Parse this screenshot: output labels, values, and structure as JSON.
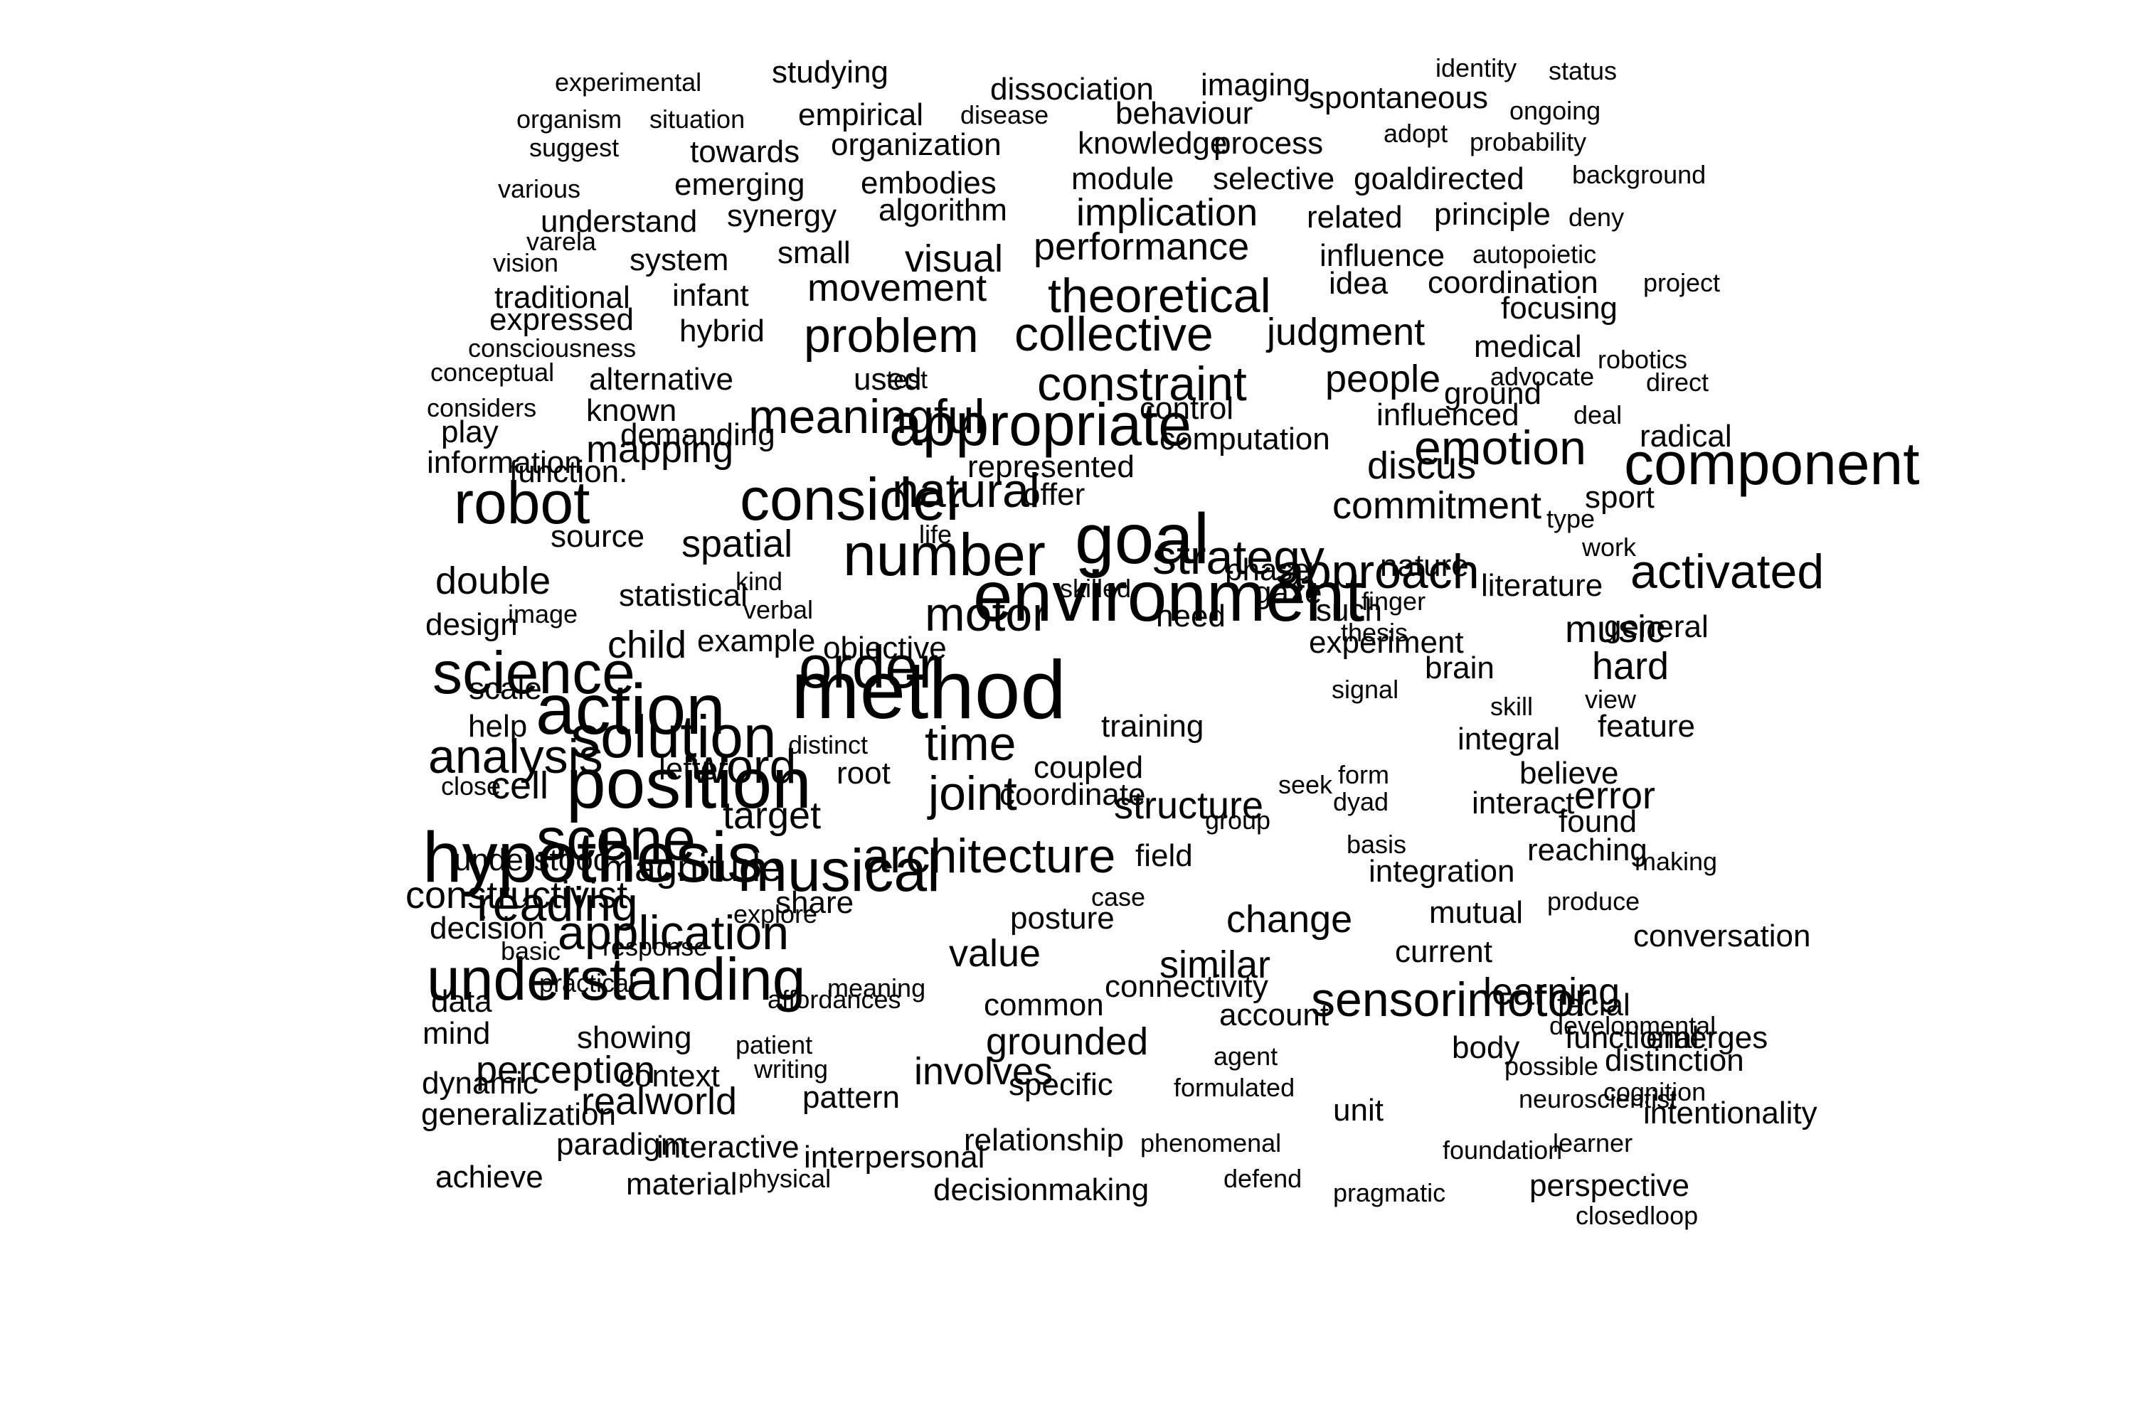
{
  "word_cloud": {
    "text_color": "#000000",
    "background_color": "#ffffff",
    "words": [
      {
        "text": "experimental",
        "weight": 1
      },
      {
        "text": "studying",
        "weight": 2
      },
      {
        "text": "dissociation",
        "weight": 2
      },
      {
        "text": "imaging",
        "weight": 2
      },
      {
        "text": "identity",
        "weight": 1
      },
      {
        "text": "status",
        "weight": 1
      },
      {
        "text": "organism",
        "weight": 1
      },
      {
        "text": "situation",
        "weight": 1
      },
      {
        "text": "empirical",
        "weight": 2
      },
      {
        "text": "disease",
        "weight": 1
      },
      {
        "text": "behaviour",
        "weight": 2
      },
      {
        "text": "spontaneous",
        "weight": 2
      },
      {
        "text": "ongoing",
        "weight": 1
      },
      {
        "text": "suggest",
        "weight": 1
      },
      {
        "text": "towards",
        "weight": 2
      },
      {
        "text": "organization",
        "weight": 2
      },
      {
        "text": "knowledge",
        "weight": 2
      },
      {
        "text": "process",
        "weight": 2
      },
      {
        "text": "adopt",
        "weight": 1
      },
      {
        "text": "probability",
        "weight": 1
      },
      {
        "text": "background",
        "weight": 1
      },
      {
        "text": "various",
        "weight": 1
      },
      {
        "text": "emerging",
        "weight": 2
      },
      {
        "text": "embodies",
        "weight": 2
      },
      {
        "text": "module",
        "weight": 2
      },
      {
        "text": "selective",
        "weight": 2
      },
      {
        "text": "goaldirected",
        "weight": 2
      },
      {
        "text": "understand",
        "weight": 2
      },
      {
        "text": "synergy",
        "weight": 2
      },
      {
        "text": "algorithm",
        "weight": 2
      },
      {
        "text": "implication",
        "weight": 3
      },
      {
        "text": "related",
        "weight": 2
      },
      {
        "text": "principle",
        "weight": 2
      },
      {
        "text": "deny",
        "weight": 1
      },
      {
        "text": "varela",
        "weight": 1
      },
      {
        "text": "vision",
        "weight": 1
      },
      {
        "text": "system",
        "weight": 2
      },
      {
        "text": "small",
        "weight": 2
      },
      {
        "text": "visual",
        "weight": 3
      },
      {
        "text": "performance",
        "weight": 3
      },
      {
        "text": "influence",
        "weight": 2
      },
      {
        "text": "autopoietic",
        "weight": 1
      },
      {
        "text": "traditional",
        "weight": 2
      },
      {
        "text": "infant",
        "weight": 2
      },
      {
        "text": "movement",
        "weight": 3
      },
      {
        "text": "theoretical",
        "weight": 4
      },
      {
        "text": "idea",
        "weight": 2
      },
      {
        "text": "coordination",
        "weight": 2
      },
      {
        "text": "project",
        "weight": 1
      },
      {
        "text": "expressed",
        "weight": 2
      },
      {
        "text": "focusing",
        "weight": 2
      },
      {
        "text": "consciousness",
        "weight": 1
      },
      {
        "text": "hybrid",
        "weight": 2
      },
      {
        "text": "problem",
        "weight": 4
      },
      {
        "text": "collective",
        "weight": 4
      },
      {
        "text": "judgment",
        "weight": 3
      },
      {
        "text": "medical",
        "weight": 2
      },
      {
        "text": "conceptual",
        "weight": 1
      },
      {
        "text": "alternative",
        "weight": 2
      },
      {
        "text": "used",
        "weight": 2
      },
      {
        "text": "test",
        "weight": 1
      },
      {
        "text": "constraint",
        "weight": 4
      },
      {
        "text": "people",
        "weight": 3
      },
      {
        "text": "advocate",
        "weight": 1
      },
      {
        "text": "robotics",
        "weight": 1
      },
      {
        "text": "ground",
        "weight": 2
      },
      {
        "text": "direct",
        "weight": 1
      },
      {
        "text": "considers",
        "weight": 1
      },
      {
        "text": "known",
        "weight": 2
      },
      {
        "text": "meaningful",
        "weight": 4
      },
      {
        "text": "appropriate",
        "weight": 5
      },
      {
        "text": "control",
        "weight": 2
      },
      {
        "text": "influenced",
        "weight": 2
      },
      {
        "text": "deal",
        "weight": 1
      },
      {
        "text": "radical",
        "weight": 2
      },
      {
        "text": "play",
        "weight": 2
      },
      {
        "text": "mapping",
        "weight": 3
      },
      {
        "text": "demanding",
        "weight": 2
      },
      {
        "text": "computation",
        "weight": 2
      },
      {
        "text": "emotion",
        "weight": 4
      },
      {
        "text": "component",
        "weight": 5
      },
      {
        "text": "information",
        "weight": 2
      },
      {
        "text": "function.",
        "weight": 2
      },
      {
        "text": "represented",
        "weight": 2
      },
      {
        "text": "discus",
        "weight": 3
      },
      {
        "text": "robot",
        "weight": 5
      },
      {
        "text": "consider",
        "weight": 5
      },
      {
        "text": "natural",
        "weight": 4
      },
      {
        "text": "offer",
        "weight": 2
      },
      {
        "text": "commitment",
        "weight": 3
      },
      {
        "text": "sport",
        "weight": 2
      },
      {
        "text": "type",
        "weight": 1
      },
      {
        "text": "source",
        "weight": 2
      },
      {
        "text": "spatial",
        "weight": 3
      },
      {
        "text": "number",
        "weight": 5
      },
      {
        "text": "goal",
        "weight": 6
      },
      {
        "text": "life",
        "weight": 1
      },
      {
        "text": "strategy",
        "weight": 4
      },
      {
        "text": "phase",
        "weight": 2
      },
      {
        "text": "nature",
        "weight": 2
      },
      {
        "text": "literature",
        "weight": 2
      },
      {
        "text": "work",
        "weight": 1
      },
      {
        "text": "double",
        "weight": 3
      },
      {
        "text": "statistical",
        "weight": 2
      },
      {
        "text": "kind",
        "weight": 1
      },
      {
        "text": "environment",
        "weight": 6
      },
      {
        "text": "approach",
        "weight": 4
      },
      {
        "text": "gaze",
        "weight": 2
      },
      {
        "text": "such",
        "weight": 2
      },
      {
        "text": "activated",
        "weight": 4
      },
      {
        "text": "design",
        "weight": 2
      },
      {
        "text": "image",
        "weight": 1
      },
      {
        "text": "music",
        "weight": 3
      },
      {
        "text": "method",
        "weight": 7
      },
      {
        "text": "motor",
        "weight": 4
      },
      {
        "text": "need",
        "weight": 2
      },
      {
        "text": "finger",
        "weight": 1
      },
      {
        "text": "general",
        "weight": 2
      },
      {
        "text": "hard",
        "weight": 3
      },
      {
        "text": "science",
        "weight": 5
      },
      {
        "text": "child",
        "weight": 3
      },
      {
        "text": "example",
        "weight": 2
      },
      {
        "text": "verbal",
        "weight": 1
      },
      {
        "text": "objective",
        "weight": 2
      },
      {
        "text": "skilled",
        "weight": 1
      },
      {
        "text": "thesis",
        "weight": 1
      },
      {
        "text": "view",
        "weight": 1
      },
      {
        "text": "scale",
        "weight": 2
      },
      {
        "text": "action",
        "weight": 6
      },
      {
        "text": "order",
        "weight": 5
      },
      {
        "text": "experiment",
        "weight": 2
      },
      {
        "text": "brain",
        "weight": 2
      },
      {
        "text": "help",
        "weight": 2
      },
      {
        "text": "solution",
        "weight": 5
      },
      {
        "text": "time",
        "weight": 4
      },
      {
        "text": "training",
        "weight": 2
      },
      {
        "text": "signal",
        "weight": 1
      },
      {
        "text": "skill",
        "weight": 1
      },
      {
        "text": "feature",
        "weight": 2
      },
      {
        "text": "analysis",
        "weight": 4
      },
      {
        "text": "position",
        "weight": 6
      },
      {
        "text": "word",
        "weight": 4
      },
      {
        "text": "distinct",
        "weight": 1
      },
      {
        "text": "joint",
        "weight": 4
      },
      {
        "text": "coupled",
        "weight": 2
      },
      {
        "text": "dyad",
        "weight": 1
      },
      {
        "text": "integral",
        "weight": 2
      },
      {
        "text": "close",
        "weight": 1
      },
      {
        "text": "cell",
        "weight": 3
      },
      {
        "text": "letter",
        "weight": 2
      },
      {
        "text": "root",
        "weight": 2
      },
      {
        "text": "structure",
        "weight": 3
      },
      {
        "text": "seek",
        "weight": 1
      },
      {
        "text": "form",
        "weight": 1
      },
      {
        "text": "believe",
        "weight": 2
      },
      {
        "text": "error",
        "weight": 3
      },
      {
        "text": "hypothesis",
        "weight": 6
      },
      {
        "text": "scene",
        "weight": 5
      },
      {
        "text": "target",
        "weight": 3
      },
      {
        "text": "coordinate",
        "weight": 2
      },
      {
        "text": "group",
        "weight": 1
      },
      {
        "text": "basis",
        "weight": 1
      },
      {
        "text": "interact",
        "weight": 2
      },
      {
        "text": "found",
        "weight": 2
      },
      {
        "text": "understood",
        "weight": 2
      },
      {
        "text": "magnitude",
        "weight": 3
      },
      {
        "text": "musical",
        "weight": 5
      },
      {
        "text": "architecture",
        "weight": 4
      },
      {
        "text": "field",
        "weight": 2
      },
      {
        "text": "integration",
        "weight": 2
      },
      {
        "text": "reaching",
        "weight": 2
      },
      {
        "text": "making",
        "weight": 1
      },
      {
        "text": "constructivist",
        "weight": 3
      },
      {
        "text": "reading",
        "weight": 4
      },
      {
        "text": "share",
        "weight": 2
      },
      {
        "text": "case",
        "weight": 1
      },
      {
        "text": "decision",
        "weight": 2
      },
      {
        "text": "application",
        "weight": 4
      },
      {
        "text": "explore",
        "weight": 1
      },
      {
        "text": "posture",
        "weight": 2
      },
      {
        "text": "change",
        "weight": 3
      },
      {
        "text": "mutual",
        "weight": 2
      },
      {
        "text": "produce",
        "weight": 1
      },
      {
        "text": "understanding",
        "weight": 5
      },
      {
        "text": "basic",
        "weight": 1
      },
      {
        "text": "response",
        "weight": 1
      },
      {
        "text": "value",
        "weight": 3
      },
      {
        "text": "similar",
        "weight": 3
      },
      {
        "text": "current",
        "weight": 2
      },
      {
        "text": "conversation",
        "weight": 2
      },
      {
        "text": "data",
        "weight": 2
      },
      {
        "text": "practical",
        "weight": 1
      },
      {
        "text": "affordances",
        "weight": 1
      },
      {
        "text": "connectivity",
        "weight": 2
      },
      {
        "text": "sensorimotor",
        "weight": 4
      },
      {
        "text": "learning",
        "weight": 3
      },
      {
        "text": "facial",
        "weight": 2
      },
      {
        "text": "mind",
        "weight": 2
      },
      {
        "text": "meaning",
        "weight": 1
      },
      {
        "text": "common",
        "weight": 2
      },
      {
        "text": "account",
        "weight": 2
      },
      {
        "text": "developmental",
        "weight": 1
      },
      {
        "text": "emerges",
        "weight": 2
      },
      {
        "text": "perception",
        "weight": 3
      },
      {
        "text": "showing",
        "weight": 2
      },
      {
        "text": "patient",
        "weight": 1
      },
      {
        "text": "grounded",
        "weight": 3
      },
      {
        "text": "agent",
        "weight": 1
      },
      {
        "text": "body",
        "weight": 2
      },
      {
        "text": "functional",
        "weight": 2
      },
      {
        "text": "distinction",
        "weight": 2
      },
      {
        "text": "dynamic",
        "weight": 2
      },
      {
        "text": "context",
        "weight": 2
      },
      {
        "text": "writing",
        "weight": 1
      },
      {
        "text": "involves",
        "weight": 3
      },
      {
        "text": "possible",
        "weight": 1
      },
      {
        "text": "cognition",
        "weight": 1
      },
      {
        "text": "intentionality",
        "weight": 2
      },
      {
        "text": "generalization",
        "weight": 2
      },
      {
        "text": "realworld",
        "weight": 3
      },
      {
        "text": "pattern",
        "weight": 2
      },
      {
        "text": "specific",
        "weight": 2
      },
      {
        "text": "formulated",
        "weight": 1
      },
      {
        "text": "unit",
        "weight": 2
      },
      {
        "text": "neuroscientist",
        "weight": 1
      },
      {
        "text": "paradigm",
        "weight": 2
      },
      {
        "text": "interactive",
        "weight": 2
      },
      {
        "text": "interpersonal",
        "weight": 2
      },
      {
        "text": "relationship",
        "weight": 2
      },
      {
        "text": "phenomenal",
        "weight": 1
      },
      {
        "text": "foundation",
        "weight": 1
      },
      {
        "text": "learner",
        "weight": 1
      },
      {
        "text": "achieve",
        "weight": 2
      },
      {
        "text": "material",
        "weight": 2
      },
      {
        "text": "physical",
        "weight": 1
      },
      {
        "text": "decisionmaking",
        "weight": 2
      },
      {
        "text": "perspective",
        "weight": 2
      },
      {
        "text": "defend",
        "weight": 1
      },
      {
        "text": "pragmatic",
        "weight": 1
      },
      {
        "text": "closedloop",
        "weight": 1
      }
    ]
  }
}
